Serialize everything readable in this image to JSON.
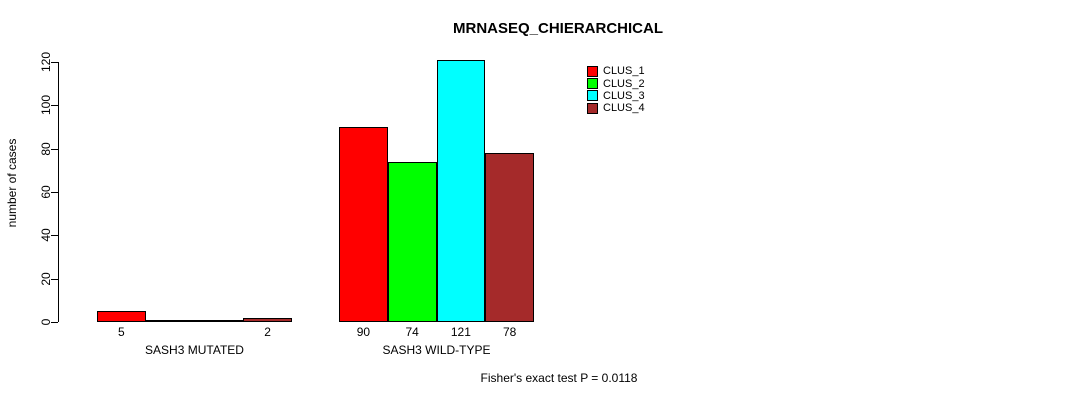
{
  "chart_data": {
    "type": "bar",
    "title": "MRNASEQ_CHIERARCHICAL",
    "ylabel": "number of cases",
    "xlabel": "",
    "categories": [
      "SASH3 MUTATED",
      "SASH3 WILD-TYPE"
    ],
    "series": [
      {
        "name": "CLUS_1",
        "color": "#FF0000",
        "values": [
          5,
          90
        ]
      },
      {
        "name": "CLUS_2",
        "color": "#00FF00",
        "values": [
          0,
          74
        ]
      },
      {
        "name": "CLUS_3",
        "color": "#00FFFF",
        "values": [
          0,
          121
        ]
      },
      {
        "name": "CLUS_4",
        "color": "#A52A2A",
        "values": [
          2,
          78
        ]
      }
    ],
    "bar_value_labels": [
      [
        "5",
        "",
        "",
        "2"
      ],
      [
        "90",
        "74",
        "121",
        "78"
      ]
    ],
    "yticks": [
      0,
      20,
      40,
      60,
      80,
      100,
      120
    ],
    "ylim": [
      0,
      121
    ],
    "grid": false,
    "legend_position": "top-right",
    "annotation": "Fisher's exact test P = 0.0118"
  }
}
